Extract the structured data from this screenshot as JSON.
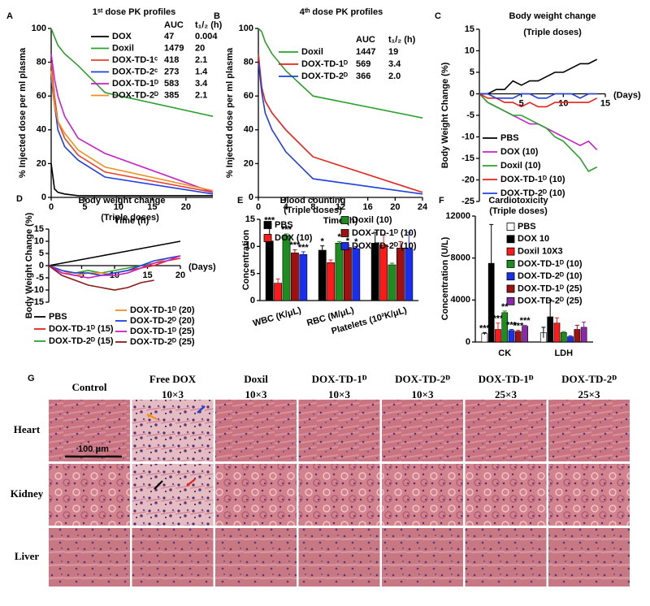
{
  "chart_data": [
    {
      "type": "line",
      "panel": "A",
      "title": "1ˢᵗ dose PK profiles",
      "xlabel": "Time (h)",
      "ylabel": "% Injected dose per ml plasma",
      "x": [
        0,
        0.5,
        1,
        2,
        4,
        8,
        24
      ],
      "xlim": [
        0,
        24
      ],
      "xticks": [
        0,
        5,
        10,
        15,
        20
      ],
      "ylim": [
        0,
        100
      ],
      "yticks": [
        0,
        20,
        40,
        60,
        80,
        100
      ],
      "legend_headers": [
        "AUC",
        "t₁/₂ (h)"
      ],
      "series": [
        {
          "name": "DOX",
          "color": "#000000",
          "values": [
            20,
            5,
            3,
            2,
            1,
            1,
            1
          ],
          "auc": "47",
          "t_half": "0.004"
        },
        {
          "name": "Doxil",
          "color": "#2ca02c",
          "values": [
            100,
            95,
            90,
            85,
            78,
            62,
            48
          ],
          "auc": "1479",
          "t_half": "20"
        },
        {
          "name": "DOX-TD-1ᶜ",
          "color": "#e8432a",
          "values": [
            80,
            60,
            45,
            35,
            25,
            15,
            3
          ],
          "auc": "418",
          "t_half": "2.1"
        },
        {
          "name": "DOX-TD-2ᶜ",
          "color": "#1f3fe0",
          "values": [
            70,
            55,
            40,
            30,
            22,
            12,
            2
          ],
          "auc": "273",
          "t_half": "1.4"
        },
        {
          "name": "DOX-TD-1ᴰ",
          "color": "#c81fc8",
          "values": [
            85,
            70,
            60,
            48,
            35,
            26,
            3
          ],
          "auc": "583",
          "t_half": "3.4"
        },
        {
          "name": "DOX-TD-2ᴰ",
          "color": "#f0901e",
          "values": [
            75,
            55,
            45,
            38,
            28,
            18,
            4
          ],
          "auc": "385",
          "t_half": "2.1"
        }
      ]
    },
    {
      "type": "line",
      "panel": "B",
      "title": "4ᵗʰ dose PK profiles",
      "xlabel": "Time (h)",
      "ylabel": "% Injected dose per ml plasma",
      "x": [
        0,
        0.5,
        1,
        2,
        4,
        8,
        24
      ],
      "xlim": [
        0,
        24
      ],
      "xticks": [
        0,
        4,
        8,
        12,
        16,
        20,
        24
      ],
      "ylim": [
        0,
        100
      ],
      "yticks": [
        0,
        20,
        40,
        60,
        80,
        100
      ],
      "legend_headers": [
        "AUC",
        "t₁/₂ (h)"
      ],
      "series": [
        {
          "name": "Doxil",
          "color": "#2ca02c",
          "values": [
            100,
            98,
            92,
            85,
            75,
            60,
            47
          ],
          "auc": "1447",
          "t_half": "19"
        },
        {
          "name": "DOX-TD-1ᴰ",
          "color": "#e8211a",
          "values": [
            85,
            65,
            57,
            50,
            40,
            24,
            3
          ],
          "auc": "569",
          "t_half": "3.4"
        },
        {
          "name": "DOX-TD-2ᴰ",
          "color": "#1f3fe0",
          "values": [
            80,
            62,
            50,
            40,
            27,
            11,
            2
          ],
          "auc": "366",
          "t_half": "2.0"
        }
      ]
    },
    {
      "type": "line",
      "panel": "C",
      "title": "Body weight change",
      "subtitle": "(Triple doses)",
      "ylabel": "Body Weight Change (%)",
      "xunit": "(Days)",
      "x_axis_at_zero": true,
      "x": [
        0,
        1,
        2,
        3,
        4,
        5,
        6,
        7,
        8,
        9,
        10,
        11,
        12,
        13,
        14
      ],
      "xlim": [
        0,
        15
      ],
      "xticks": [
        5,
        10,
        15
      ],
      "ylim": [
        -25,
        15
      ],
      "yticks": [
        -25,
        -20,
        -15,
        -10,
        -5,
        0,
        5,
        10,
        15
      ],
      "series": [
        {
          "name": "PBS",
          "color": "#000000",
          "values": [
            0,
            0,
            1,
            1,
            3,
            2,
            3,
            3,
            4,
            5,
            5,
            6,
            7,
            7,
            8
          ]
        },
        {
          "name": "DOX (10)",
          "color": "#c81fc8",
          "values": [
            0,
            -2,
            -3,
            -4,
            -5,
            -6,
            -7,
            -7,
            -8,
            -9,
            -10,
            -11,
            -12,
            -11,
            -13
          ]
        },
        {
          "name": "Doxil (10)",
          "color": "#2ca02c",
          "values": [
            0,
            -2,
            -3,
            -4,
            -5,
            -5,
            -6,
            -7,
            -8,
            -10,
            -11,
            -13,
            -15,
            -18,
            -17
          ]
        },
        {
          "name": "DOX-TD-1ᴰ (10)",
          "color": "#e8211a",
          "values": [
            0,
            -1,
            -1,
            -2,
            -2,
            -3,
            -2,
            -3,
            -3,
            -2,
            -2,
            -2,
            -2,
            -2,
            -1
          ]
        },
        {
          "name": "DOX-TD-2ᴰ (10)",
          "color": "#1f3fe0",
          "values": [
            0,
            0,
            -1,
            -1,
            -1,
            0,
            0,
            -1,
            -1,
            0,
            0,
            0,
            -1,
            0,
            0
          ]
        }
      ]
    },
    {
      "type": "line",
      "panel": "D",
      "title": "Body weight change",
      "subtitle": "(Triple doses)",
      "ylabel": "Body Weight Change (%)",
      "xunit": "(Days)",
      "x_axis_at_zero": true,
      "x": [
        0,
        2,
        4,
        6,
        8,
        10,
        12,
        14,
        16,
        18,
        20
      ],
      "xlim": [
        0,
        20
      ],
      "xticks": [
        5,
        10,
        15,
        20
      ],
      "ylim": [
        -15,
        15
      ],
      "yticks": [
        -15,
        -10,
        -5,
        0,
        5,
        10,
        15
      ],
      "series": [
        {
          "name": "PBS",
          "color": "#000000",
          "values": [
            0,
            1,
            2,
            3,
            4,
            5,
            6,
            7,
            8,
            9,
            10
          ]
        },
        {
          "name": "DOX-TD-1ᴰ (15)",
          "color": "#e8211a",
          "values": [
            0,
            -3,
            -4,
            -3,
            -4,
            -3,
            -2,
            -1,
            0,
            2,
            3
          ]
        },
        {
          "name": "DOX-TD-2ᴰ (15)",
          "color": "#2ca02c",
          "values": [
            0,
            -2,
            -3,
            -2,
            -3,
            -2,
            -1,
            0,
            1,
            3,
            4
          ]
        },
        {
          "name": "DOX-TD-1ᴰ (20)",
          "color": "#f0901e",
          "values": [
            0,
            -2,
            -4,
            -3,
            -3,
            -4,
            -3,
            -1,
            1,
            3,
            4
          ]
        },
        {
          "name": "DOX-TD-2ᴰ (20)",
          "color": "#1f3fe0",
          "values": [
            0,
            -2,
            -3,
            -3,
            -4,
            -3,
            -2,
            0,
            2,
            3,
            4
          ]
        },
        {
          "name": "DOX-TD-1ᴰ (25)",
          "color": "#c81fc8",
          "values": [
            0,
            -3,
            -4,
            -5,
            -4,
            -4,
            -3,
            -1,
            1,
            2,
            4
          ]
        },
        {
          "name": "DOX-TD-2ᴰ (25)",
          "color": "#8b1a1a",
          "values": [
            0,
            -4,
            -6,
            -8,
            -9,
            -10,
            -9,
            -7,
            -6,
            null,
            null
          ]
        }
      ]
    },
    {
      "type": "bar",
      "panel": "E",
      "title": "Blood counting",
      "subtitle": "(Triple doses)",
      "ylabel": "Concentration",
      "categories": [
        "WBC (K/μL)",
        "RBC (M/μL)",
        "Platelets (10²K/μL)"
      ],
      "ylim": [
        0,
        15
      ],
      "yticks": [
        0,
        5,
        10,
        15
      ],
      "series": [
        {
          "name": "PBS",
          "color": "#000000",
          "values": [
            11,
            9.3,
            10.6
          ],
          "errors": [
            3,
            0.8,
            2
          ],
          "annotations": [
            "***",
            "*",
            null
          ]
        },
        {
          "name": "DOX (10)",
          "color": "#ff1a1a",
          "values": [
            3.2,
            7,
            10.3
          ],
          "errors": [
            0.8,
            0.5,
            1.8
          ],
          "annotations": [
            null,
            null,
            null
          ]
        },
        {
          "name": "Doxil (10)",
          "color": "#1e8c1e",
          "values": [
            12,
            10.6,
            6.6
          ],
          "errors": [
            0.3,
            0.3,
            0.3
          ],
          "annotations": [
            "***",
            "*",
            null
          ]
        },
        {
          "name": "DOX-TD-1ᴰ (10)",
          "color": "#a01010",
          "values": [
            8.8,
            9.8,
            9.7
          ],
          "errors": [
            0.6,
            0.4,
            1.2
          ],
          "annotations": [
            "***",
            "*",
            null
          ]
        },
        {
          "name": "DOX-TD-2ᴰ (10)",
          "color": "#1a2ef0",
          "values": [
            8.5,
            9.6,
            9.6
          ],
          "errors": [
            0.5,
            0.4,
            3
          ],
          "annotations": [
            "***",
            "*",
            null
          ]
        }
      ]
    },
    {
      "type": "bar",
      "panel": "F",
      "title": "Cardiotoxicity",
      "subtitle": "(Triple doses)",
      "ylabel": "Concentration (U/L)",
      "categories": [
        "CK",
        "LDH"
      ],
      "ylim": [
        0,
        12000
      ],
      "yticks": [
        0,
        4000,
        8000,
        12000
      ],
      "series": [
        {
          "name": "PBS",
          "color": "#ffffff",
          "values": [
            800,
            900
          ],
          "errors": [
            100,
            500
          ],
          "annotations": [
            "***",
            null
          ]
        },
        {
          "name": "DOX 10",
          "color": "#000000",
          "values": [
            7500,
            2400
          ],
          "errors": [
            3700,
            1600
          ],
          "annotations": [
            null,
            null
          ]
        },
        {
          "name": "Doxil 10X3",
          "color": "#ff1a1a",
          "values": [
            1200,
            1800
          ],
          "errors": [
            600,
            500
          ],
          "annotations": [
            "***",
            null
          ]
        },
        {
          "name": "DOX-TD-1ᴰ (10)",
          "color": "#1e8c1e",
          "values": [
            2800,
            900
          ],
          "errors": [
            150,
            100
          ],
          "annotations": [
            "**",
            null
          ]
        },
        {
          "name": "DOX-TD-2ᴰ (10)",
          "color": "#1a2ef0",
          "values": [
            1100,
            500
          ],
          "errors": [
            100,
            100
          ],
          "annotations": [
            "***",
            null
          ]
        },
        {
          "name": "DOX-TD-1ᴰ (25)",
          "color": "#a01010",
          "values": [
            1000,
            1200
          ],
          "errors": [
            100,
            400
          ],
          "annotations": [
            "***",
            null
          ]
        },
        {
          "name": "DOX-TD-2ᴰ (25)",
          "color": "#8b2aa8",
          "values": [
            1500,
            1400
          ],
          "errors": [
            100,
            500
          ],
          "annotations": [
            "***",
            null
          ]
        }
      ]
    }
  ],
  "figure_g": {
    "panel": "G",
    "columns": [
      [
        "Control"
      ],
      [
        "Free DOX",
        "10×3"
      ],
      [
        "Doxil",
        "10×3"
      ],
      [
        "DOX-TD-1ᴰ",
        "10×3"
      ],
      [
        "DOX-TD-2ᴰ",
        "10×3"
      ],
      [
        "DOX-TD-1ᴰ",
        "25×3"
      ],
      [
        "DOX-TD-2ᴰ",
        "25×3"
      ]
    ],
    "rows": [
      "Heart",
      "Kidney",
      "Liver"
    ],
    "scale_bar": "100 μm"
  }
}
